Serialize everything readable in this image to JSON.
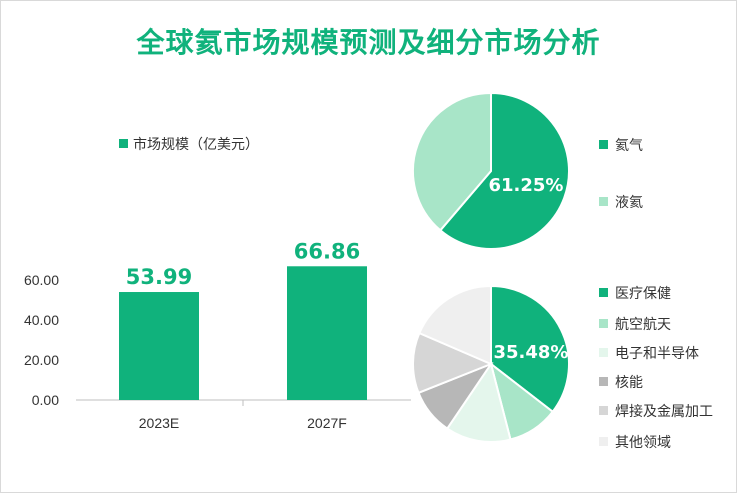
{
  "title": "全球氦市场规模预测及细分市场分析",
  "chart_data": [
    {
      "type": "bar",
      "categories": [
        "2023E",
        "2027F"
      ],
      "series": [
        {
          "name": "市场规模（亿美元）",
          "values": [
            53.99,
            66.86
          ],
          "labels": [
            "53.99",
            "66.86"
          ],
          "color": "#10b27c"
        }
      ],
      "yticks": [
        "0.00",
        "20.00",
        "40.00",
        "60.00"
      ],
      "ylim": [
        0,
        75
      ],
      "grid": false,
      "legend": "top"
    },
    {
      "type": "pie",
      "labels": [
        "氦气",
        "液氦"
      ],
      "values": [
        61.25,
        38.75
      ],
      "colors": [
        "#10b27c",
        "#a8e5c8"
      ],
      "shown_label": "61.25%",
      "legend": "right"
    },
    {
      "type": "pie",
      "labels": [
        "医疗保健",
        "航空航天",
        "电子和半导体",
        "核能",
        "焊接及金属加工",
        "其他领域"
      ],
      "values": [
        35.48,
        10.5,
        13.5,
        9.5,
        12.5,
        18.52
      ],
      "colors": [
        "#10b27c",
        "#a8e5c8",
        "#e4f6ec",
        "#b7b7b7",
        "#d6d6d6",
        "#efefef"
      ],
      "shown_label": "35.48%",
      "legend": "right"
    }
  ]
}
